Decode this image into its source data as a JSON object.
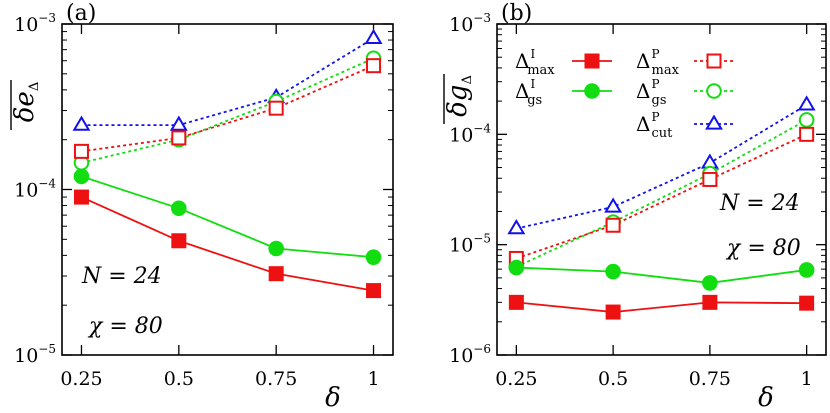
{
  "chart_data": [
    {
      "type": "line",
      "panel_label": "(a)",
      "ylabel": "δe_Δ (overlined)",
      "ylabel_main": "δe",
      "ylabel_sub": "Δ",
      "xlabel": "δ",
      "yscale": "log",
      "ylim": [
        1e-05,
        0.001
      ],
      "xlim": [
        0.2,
        1.05
      ],
      "xticks": [
        0.25,
        0.5,
        0.75,
        1
      ],
      "xtick_labels": [
        "0.25",
        "0.5",
        "0.75",
        "1"
      ],
      "ytick_labels": [
        {
          "value": 1e-05,
          "base": "10",
          "exp": "−5"
        },
        {
          "value": 0.0001,
          "base": "10",
          "exp": "−4"
        },
        {
          "value": 0.001,
          "base": "10",
          "exp": "−3"
        }
      ],
      "annotations": [
        "N = 24",
        "χ = 80"
      ],
      "x": [
        0.25,
        0.5,
        0.75,
        1
      ],
      "series": [
        {
          "key": "imax",
          "values": [
            9e-05,
            4.9e-05,
            3.1e-05,
            2.45e-05
          ]
        },
        {
          "key": "igs",
          "values": [
            0.00012,
            7.7e-05,
            4.4e-05,
            3.9e-05
          ]
        },
        {
          "key": "pmax",
          "values": [
            0.00017,
            0.000205,
            0.00031,
            0.00056
          ]
        },
        {
          "key": "pgs",
          "values": [
            0.000145,
            0.0002,
            0.00034,
            0.00062
          ]
        },
        {
          "key": "pcut",
          "values": [
            0.000245,
            0.000245,
            0.00036,
            0.00082
          ]
        }
      ]
    },
    {
      "type": "line",
      "panel_label": "(b)",
      "ylabel": "δg_Δ (overlined)",
      "ylabel_main": "δg",
      "ylabel_sub": "Δ",
      "xlabel": "δ",
      "yscale": "log",
      "ylim": [
        1e-06,
        0.001
      ],
      "xlim": [
        0.2,
        1.05
      ],
      "xticks": [
        0.25,
        0.5,
        0.75,
        1
      ],
      "xtick_labels": [
        "0.25",
        "0.5",
        "0.75",
        "1"
      ],
      "ytick_labels": [
        {
          "value": 1e-06,
          "base": "10",
          "exp": "−6"
        },
        {
          "value": 1e-05,
          "base": "10",
          "exp": "−5"
        },
        {
          "value": 0.0001,
          "base": "10",
          "exp": "−4"
        },
        {
          "value": 0.001,
          "base": "10",
          "exp": "−3"
        }
      ],
      "annotations": [
        "N = 24",
        "χ = 80"
      ],
      "x": [
        0.25,
        0.5,
        0.75,
        1
      ],
      "series": [
        {
          "key": "imax",
          "values": [
            3e-06,
            2.45e-06,
            3e-06,
            2.95e-06
          ]
        },
        {
          "key": "igs",
          "values": [
            6.2e-06,
            5.7e-06,
            4.5e-06,
            5.9e-06
          ]
        },
        {
          "key": "pmax",
          "values": [
            7.5e-06,
            1.5e-05,
            3.9e-05,
            0.0001
          ]
        },
        {
          "key": "pgs",
          "values": [
            6.3e-06,
            1.6e-05,
            4.4e-05,
            0.000135
          ]
        },
        {
          "key": "pcut",
          "values": [
            1.4e-05,
            2.2e-05,
            5.5e-05,
            0.000185
          ]
        }
      ]
    }
  ],
  "legend": [
    {
      "key": "imax",
      "base": "Δ",
      "sup": "I",
      "sub": "max",
      "color": "#ee1111",
      "marker": "square",
      "filled": true,
      "dashed": false
    },
    {
      "key": "igs",
      "base": "Δ",
      "sup": "I",
      "sub": "gs",
      "color": "#11dd11",
      "marker": "circle",
      "filled": true,
      "dashed": false
    },
    {
      "key": "pmax",
      "base": "Δ",
      "sup": "P",
      "sub": "max",
      "color": "#ee1111",
      "marker": "square",
      "filled": false,
      "dashed": true
    },
    {
      "key": "pgs",
      "base": "Δ",
      "sup": "P",
      "sub": "gs",
      "color": "#11dd11",
      "marker": "circle",
      "filled": false,
      "dashed": true
    },
    {
      "key": "pcut",
      "base": "Δ",
      "sup": "P",
      "sub": "cut",
      "color": "#1111ee",
      "marker": "triangle",
      "filled": false,
      "dashed": true
    }
  ]
}
